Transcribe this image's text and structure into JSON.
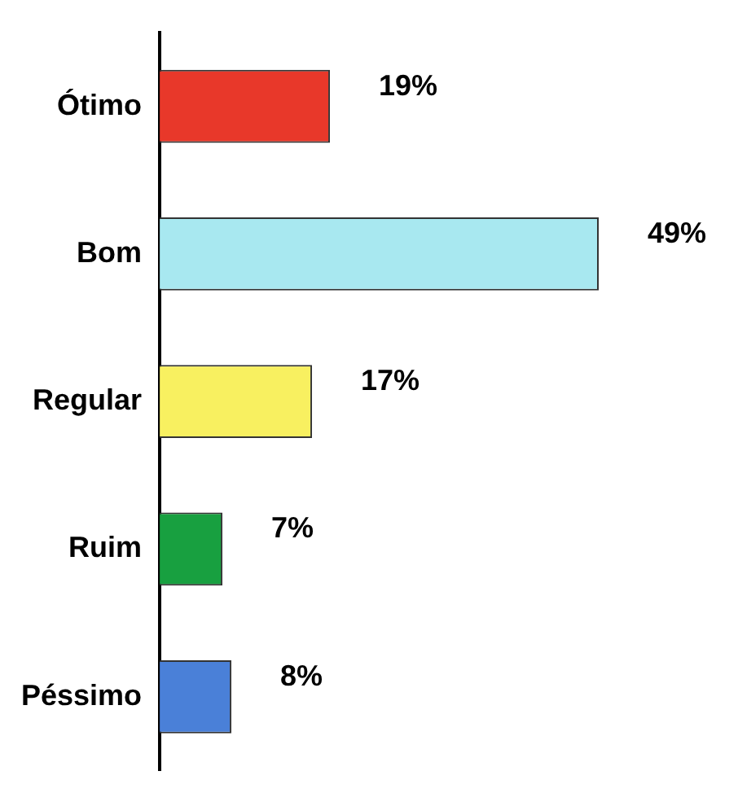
{
  "chart_data": {
    "type": "bar",
    "orientation": "horizontal",
    "categories": [
      "Ótimo",
      "Bom",
      "Regular",
      "Ruim",
      "Péssimo"
    ],
    "values": [
      19,
      49,
      17,
      7,
      8
    ],
    "colors": [
      "#e8382a",
      "#a8e8f0",
      "#f8f060",
      "#18a040",
      "#4a80d8"
    ],
    "value_labels": [
      "19%",
      "49%",
      "17%",
      "7%",
      "8%"
    ],
    "grid": false,
    "legend": false
  }
}
